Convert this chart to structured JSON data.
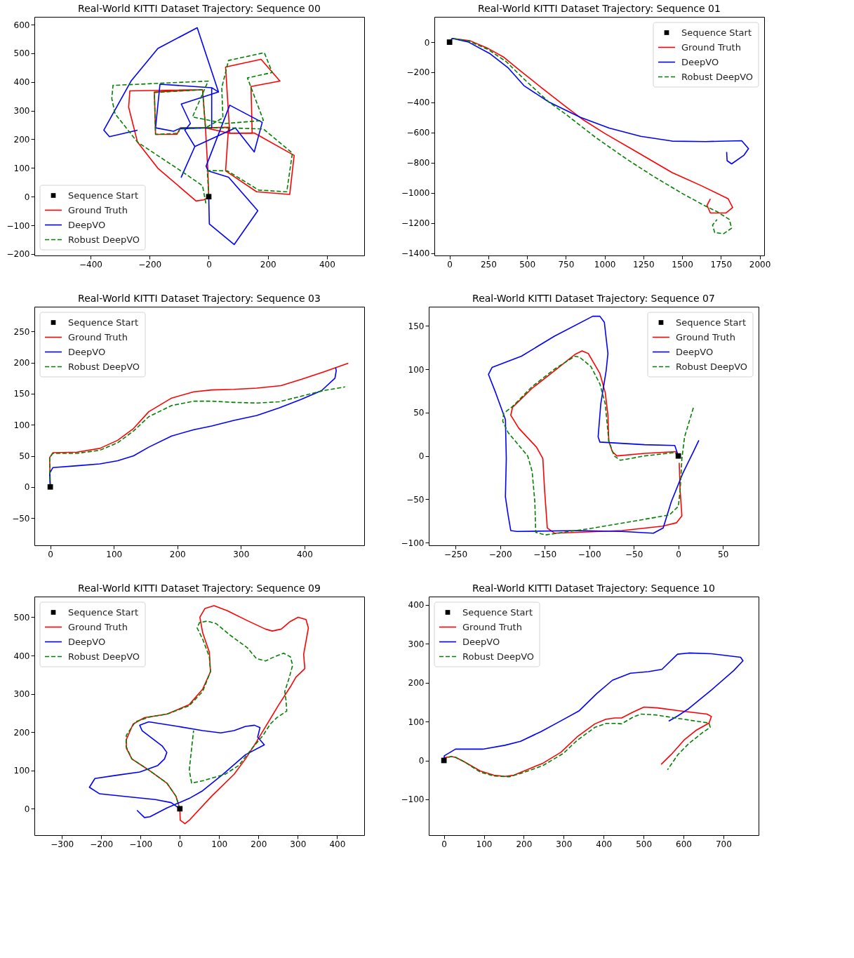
{
  "chart_data": [
    {
      "type": "line",
      "title": "Real-World KITTI Dataset Trajectory: Sequence 00",
      "xlim": [
        -590,
        526
      ],
      "ylim": [
        -205,
        627
      ],
      "xticks": [
        -400,
        -200,
        0,
        200,
        400
      ],
      "yticks": [
        -200,
        -100,
        0,
        100,
        200,
        300,
        400,
        500,
        600
      ],
      "legend": "bottom left",
      "series": [
        {
          "name": "Sequence Start",
          "type": "scatter",
          "marker": "square",
          "color": "#000000",
          "x": [
            0
          ],
          "values": [
            0
          ]
        },
        {
          "name": "Ground Truth",
          "color": "#ff0000",
          "line_style": "solid",
          "x": [
            0,
            -3,
            -11,
            -21,
            -184,
            -180,
            -108,
            -96,
            -11,
            67,
            57,
            162,
            274,
            289,
            154,
            71,
            57,
            177,
            241,
            143,
            147,
            71,
            -11,
            -21,
            -267,
            -271,
            -241,
            -172,
            -43,
            -17,
            -4
          ],
          "values": [
            0,
            91,
            240,
            373,
            365,
            217,
            217,
            240,
            240,
            242,
            90,
            17,
            8,
            144,
            222,
            221,
            452,
            479,
            403,
            384,
            221,
            221,
            240,
            373,
            369,
            312,
            190,
            99,
            -15,
            -11,
            -4
          ]
        },
        {
          "name": "DeepVO",
          "color": "#0000ff",
          "line_style": "solid",
          "x": [
            0,
            2,
            86,
            166,
            67,
            -2,
            -9,
            71,
            181,
            154,
            90,
            -47,
            -93,
            -47,
            -81,
            -62,
            -93,
            33,
            10,
            -165,
            -180,
            -119,
            -100,
            10,
            10,
            33,
            -39,
            -172,
            -263,
            -355,
            -336,
            -241
          ],
          "values": [
            0,
            -95,
            -167,
            -49,
            68,
            90,
            106,
            319,
            259,
            156,
            240,
            175,
            68,
            175,
            232,
            255,
            323,
            365,
            380,
            392,
            240,
            228,
            237,
            240,
            380,
            365,
            589,
            517,
            403,
            232,
            209,
            232
          ]
        },
        {
          "name": "Robust DeepVO",
          "color": "#008000",
          "line_style": "dashed",
          "x": [
            0,
            -5,
            63,
            169,
            264,
            283,
            185,
            63,
            -11,
            -21,
            -184,
            -180,
            -104,
            -96,
            -11,
            48,
            44,
            67,
            188,
            215,
            131,
            185,
            55,
            -55,
            -2,
            -324,
            -328,
            -317,
            -241,
            -74,
            -21,
            -9
          ],
          "values": [
            0,
            91,
            90,
            23,
            17,
            152,
            236,
            240,
            240,
            373,
            363,
            217,
            221,
            240,
            240,
            275,
            380,
            475,
            502,
            433,
            414,
            266,
            255,
            278,
            403,
            388,
            342,
            289,
            190,
            76,
            38,
            -27
          ]
        }
      ]
    },
    {
      "type": "line",
      "title": "Real-World KITTI Dataset Trajectory: Sequence 01",
      "xlim": [
        -98,
        2029
      ],
      "ylim": [
        -1416,
        168
      ],
      "xticks": [
        0,
        250,
        500,
        750,
        1000,
        1250,
        1500,
        1750,
        2000
      ],
      "yticks": [
        -1400,
        -1200,
        -1000,
        -800,
        -600,
        -400,
        -200,
        0
      ],
      "legend": "top right",
      "series": [
        {
          "name": "Sequence Start",
          "type": "scatter",
          "marker": "square",
          "color": "#000000",
          "x": [
            0
          ],
          "values": [
            0
          ]
        },
        {
          "name": "Ground Truth",
          "color": "#ff0000",
          "line_style": "solid",
          "x": [
            0,
            17,
            133,
            249,
            350,
            452,
            611,
            755,
            857,
            1001,
            1219,
            1436,
            1624,
            1797,
            1826,
            1783,
            1682,
            1660,
            1682
          ],
          "values": [
            0,
            25,
            9,
            -42,
            -100,
            -187,
            -317,
            -432,
            -512,
            -606,
            -736,
            -866,
            -953,
            -1040,
            -1098,
            -1134,
            -1134,
            -1083,
            -1040
          ]
        },
        {
          "name": "DeepVO",
          "color": "#0000ff",
          "line_style": "solid",
          "x": [
            0,
            17,
            119,
            263,
            379,
            480,
            640,
            842,
            1030,
            1233,
            1436,
            1653,
            1884,
            1928,
            1899,
            1819,
            1790,
            1787
          ],
          "values": [
            0,
            25,
            2,
            -78,
            -172,
            -289,
            -397,
            -498,
            -570,
            -625,
            -657,
            -660,
            -654,
            -707,
            -750,
            -808,
            -787,
            -729
          ]
        },
        {
          "name": "Robust DeepVO",
          "color": "#008000",
          "line_style": "dashed",
          "x": [
            0,
            17,
            119,
            249,
            365,
            480,
            640,
            755,
            944,
            1146,
            1320,
            1508,
            1652,
            1725,
            1804,
            1819,
            1768,
            1710,
            1696,
            1725
          ],
          "values": [
            0,
            25,
            9,
            -49,
            -129,
            -245,
            -397,
            -483,
            -634,
            -779,
            -894,
            -1009,
            -1089,
            -1125,
            -1177,
            -1235,
            -1271,
            -1264,
            -1214,
            -1177
          ]
        }
      ]
    },
    {
      "type": "line",
      "title": "Real-World KITTI Dataset Trajectory: Sequence 03",
      "xlim": [
        -25,
        494
      ],
      "ylim": [
        -94,
        290
      ],
      "xticks": [
        0,
        100,
        200,
        300,
        400
      ],
      "yticks": [
        -50,
        0,
        50,
        100,
        150,
        200,
        250
      ],
      "legend": "top left",
      "series": [
        {
          "name": "Sequence Start",
          "type": "scatter",
          "marker": "square",
          "color": "#000000",
          "x": [
            0
          ],
          "values": [
            0
          ]
        },
        {
          "name": "Ground Truth",
          "color": "#ff0000",
          "line_style": "solid",
          "x": [
            0,
            -1,
            4,
            42,
            78,
            106,
            131,
            155,
            191,
            226,
            254,
            289,
            325,
            363,
            395,
            430,
            469
          ],
          "values": [
            0,
            47,
            55,
            56,
            62,
            75,
            94,
            121,
            143,
            153,
            156,
            157,
            159,
            163,
            173,
            185,
            199
          ]
        },
        {
          "name": "DeepVO",
          "color": "#0000ff",
          "line_style": "solid",
          "x": [
            0,
            -1,
            4,
            42,
            78,
            106,
            131,
            155,
            191,
            226,
            254,
            289,
            325,
            360,
            395,
            427,
            448,
            450,
            449
          ],
          "values": [
            0,
            22,
            31,
            34,
            37,
            42,
            50,
            64,
            82,
            92,
            98,
            107,
            115,
            127,
            141,
            155,
            175,
            187,
            192
          ]
        },
        {
          "name": "Robust DeepVO",
          "color": "#008000",
          "line_style": "dashed",
          "x": [
            0,
            -1,
            4,
            42,
            78,
            106,
            131,
            155,
            191,
            226,
            254,
            289,
            325,
            360,
            395,
            430,
            464
          ],
          "values": [
            0,
            47,
            54,
            54,
            59,
            71,
            90,
            113,
            131,
            138,
            138,
            136,
            135,
            137,
            146,
            155,
            161
          ]
        }
      ]
    },
    {
      "type": "line",
      "title": "Real-World KITTI Dataset Trajectory: Sequence 07",
      "xlim": [
        -280,
        90
      ],
      "ylim": [
        -103,
        172
      ],
      "xticks": [
        -250,
        -200,
        -150,
        -100,
        -50,
        0,
        50
      ],
      "yticks": [
        -100,
        -50,
        0,
        50,
        100,
        150
      ],
      "legend": "top right",
      "series": [
        {
          "name": "Sequence Start",
          "type": "scatter",
          "marker": "square",
          "color": "#000000",
          "x": [
            0
          ],
          "values": [
            0
          ]
        },
        {
          "name": "Ground Truth",
          "color": "#ff0000",
          "line_style": "solid",
          "x": [
            0,
            -3,
            -38,
            -69,
            -74,
            -78,
            -79,
            -82,
            -88,
            -101,
            -108,
            -116,
            -139,
            -164,
            -186,
            -188,
            -179,
            -159,
            -152,
            -150,
            -147,
            -139,
            -63,
            -18,
            -2,
            4,
            2,
            1
          ],
          "values": [
            0,
            5,
            3,
            0,
            5,
            17,
            47,
            73,
            95,
            118,
            121,
            117,
            98,
            78,
            56,
            47,
            32,
            10,
            -3,
            -40,
            -83,
            -89,
            -86,
            -81,
            -77,
            -69,
            -40,
            -8
          ]
        },
        {
          "name": "DeepVO",
          "color": "#0000ff",
          "line_style": "solid",
          "x": [
            0,
            -4,
            -38,
            -88,
            -90,
            -87,
            -81,
            -79,
            -83,
            -88,
            -96,
            -139,
            -176,
            -209,
            -213,
            -205,
            -194,
            -193,
            -194,
            -191,
            -188,
            -181,
            -113,
            -63,
            -28,
            -17,
            -8,
            5,
            17,
            23
          ],
          "values": [
            0,
            12,
            13,
            16,
            22,
            60,
            98,
            118,
            154,
            161,
            161,
            138,
            115,
            102,
            94,
            73,
            42,
            -3,
            -47,
            -68,
            -86,
            -87,
            -86,
            -87,
            -89,
            -83,
            -53,
            -20,
            5,
            18
          ]
        },
        {
          "name": "Robust DeepVO",
          "color": "#008000",
          "line_style": "dashed",
          "x": [
            0,
            -4,
            -38,
            -65,
            -72,
            -78,
            -82,
            -88,
            -98,
            -111,
            -116,
            -139,
            -164,
            -186,
            -196,
            -197,
            -191,
            -169,
            -164,
            -161,
            -160,
            -149,
            -101,
            -38,
            -10,
            0,
            2,
            4,
            7,
            17
          ],
          "values": [
            0,
            4,
            0,
            -5,
            0,
            17,
            60,
            83,
            103,
            114,
            115,
            100,
            80,
            57,
            49,
            40,
            27,
            0,
            -18,
            -53,
            -88,
            -91,
            -84,
            -73,
            -68,
            -58,
            -40,
            -3,
            22,
            56
          ]
        }
      ]
    },
    {
      "type": "line",
      "title": "Real-World KITTI Dataset Trajectory: Sequence 09",
      "xlim": [
        -370,
        469
      ],
      "ylim": [
        -69,
        554
      ],
      "xticks": [
        -300,
        -200,
        -100,
        0,
        100,
        200,
        300,
        400
      ],
      "yticks": [
        0,
        100,
        200,
        300,
        400,
        500
      ],
      "legend": "top left",
      "series": [
        {
          "name": "Sequence Start",
          "type": "scatter",
          "marker": "square",
          "color": "#000000",
          "x": [
            0
          ],
          "values": [
            0
          ]
        },
        {
          "name": "Ground Truth",
          "color": "#ff0000",
          "line_style": "solid",
          "x": [
            0,
            1,
            13,
            24,
            81,
            138,
            167,
            195,
            252,
            281,
            295,
            318,
            315,
            327,
            321,
            301,
            281,
            258,
            235,
            218,
            172,
            121,
            87,
            64,
            51,
            58,
            75,
            78,
            58,
            24,
            -33,
            -90,
            -119,
            -136,
            -136,
            -122,
            -79,
            -33,
            -10,
            -3
          ],
          "values": [
            0,
            -30,
            -39,
            -30,
            33,
            90,
            130,
            175,
            272,
            318,
            343,
            366,
            403,
            472,
            494,
            500,
            489,
            469,
            464,
            469,
            491,
            517,
            530,
            523,
            500,
            460,
            409,
            358,
            312,
            272,
            247,
            238,
            221,
            181,
            158,
            130,
            101,
            67,
            33,
            10
          ]
        },
        {
          "name": "DeepVO",
          "color": "#0000ff",
          "line_style": "solid",
          "x": [
            0,
            -22,
            -62,
            -119,
            -204,
            -230,
            -216,
            -164,
            -102,
            -56,
            -39,
            -33,
            -45,
            -96,
            -102,
            -79,
            -5,
            58,
            104,
            138,
            167,
            190,
            204,
            198,
            215,
            167,
            110,
            58,
            24,
            -33,
            -76,
            -90,
            -109
          ],
          "values": [
            0,
            16,
            24,
            30,
            39,
            56,
            79,
            87,
            96,
            113,
            130,
            147,
            164,
            204,
            218,
            227,
            215,
            204,
            198,
            204,
            215,
            218,
            212,
            187,
            167,
            141,
            90,
            47,
            27,
            2,
            -21,
            -23,
            -4
          ]
        },
        {
          "name": "Robust DeepVO",
          "color": "#008000",
          "line_style": "dashed",
          "x": [
            0,
            -10,
            -33,
            -79,
            -122,
            -137,
            -136,
            -113,
            -79,
            -33,
            24,
            58,
            78,
            75,
            58,
            44,
            50,
            70,
            93,
            127,
            172,
            195,
            218,
            241,
            264,
            281,
            287,
            278,
            267,
            270,
            272,
            247,
            230,
            212,
            184,
            150,
            115,
            58,
            30,
            24,
            30,
            35
          ],
          "values": [
            0,
            33,
            67,
            101,
            130,
            164,
            192,
            227,
            239,
            247,
            269,
            306,
            358,
            397,
            443,
            472,
            486,
            490,
            483,
            454,
            420,
            392,
            386,
            397,
            406,
            397,
            375,
            341,
            306,
            284,
            255,
            238,
            221,
            192,
            158,
            113,
            90,
            73,
            67,
            101,
            158,
            204
          ]
        }
      ]
    },
    {
      "type": "line",
      "title": "Real-World KITTI Dataset Trajectory: Sequence 10",
      "xlim": [
        -38,
        788
      ],
      "ylim": [
        -192,
        421
      ],
      "xticks": [
        0,
        100,
        200,
        300,
        400,
        500,
        600,
        700
      ],
      "yticks": [
        -100,
        0,
        100,
        200,
        300,
        400
      ],
      "legend": "top left",
      "series": [
        {
          "name": "Sequence Start",
          "type": "scatter",
          "marker": "square",
          "color": "#000000",
          "x": [
            0
          ],
          "values": [
            0
          ]
        },
        {
          "name": "Ground Truth",
          "color": "#ff0000",
          "line_style": "solid",
          "x": [
            0,
            1,
            18,
            29,
            52,
            91,
            125,
            153,
            175,
            203,
            248,
            293,
            333,
            378,
            406,
            428,
            445,
            473,
            501,
            535,
            586,
            659,
            670,
            664,
            631,
            603,
            569,
            544
          ],
          "values": [
            0,
            7,
            10,
            8,
            -4,
            -27,
            -38,
            -41,
            -38,
            -26,
            -7,
            21,
            60,
            94,
            106,
            109,
            109,
            124,
            137,
            135,
            128,
            119,
            113,
            96,
            77,
            54,
            15,
            -10
          ]
        },
        {
          "name": "DeepVO",
          "color": "#0000ff",
          "line_style": "solid",
          "x": [
            0,
            1,
            29,
            97,
            153,
            192,
            243,
            288,
            338,
            383,
            422,
            467,
            512,
            546,
            585,
            613,
            670,
            743,
            749,
            726,
            670,
            613,
            585,
            563
          ],
          "values": [
            0,
            12,
            29,
            29,
            39,
            49,
            74,
            99,
            127,
            172,
            206,
            224,
            228,
            234,
            273,
            276,
            274,
            265,
            256,
            231,
            181,
            133,
            114,
            101
          ]
        },
        {
          "name": "Robust DeepVO",
          "color": "#008000",
          "line_style": "dashed",
          "x": [
            0,
            1,
            18,
            29,
            52,
            91,
            125,
            164,
            203,
            248,
            299,
            333,
            378,
            406,
            434,
            445,
            473,
            493,
            530,
            586,
            664,
            667,
            647,
            613,
            586,
            560
          ],
          "values": [
            0,
            5,
            10,
            8,
            -4,
            -30,
            -40,
            -42,
            -30,
            -13,
            18,
            51,
            85,
            95,
            95,
            94,
            111,
            119,
            117,
            108,
            96,
            85,
            71,
            43,
            15,
            -24
          ]
        }
      ]
    }
  ]
}
